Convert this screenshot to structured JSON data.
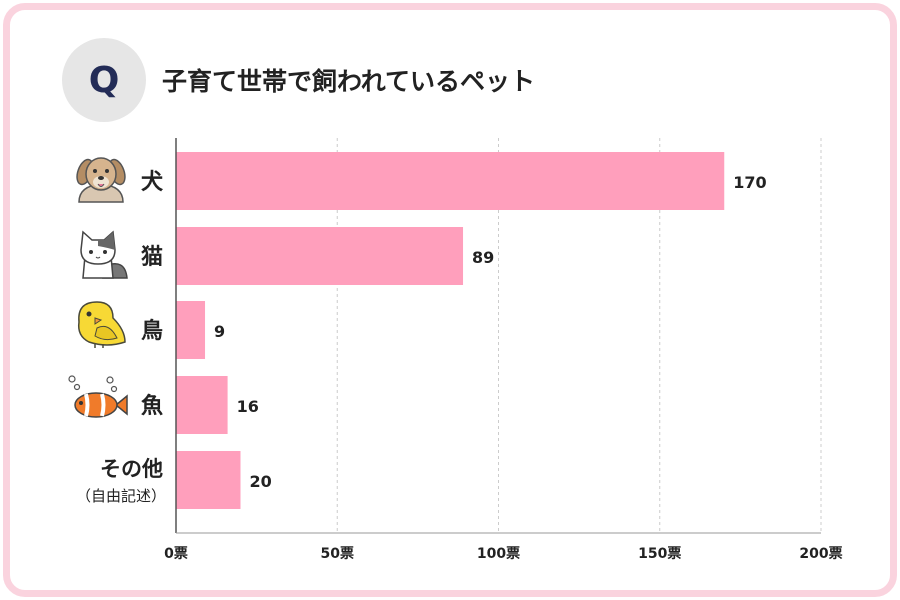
{
  "question_badge": "Q",
  "title": "子育て世帯で飼われているペット",
  "colors": {
    "bar": "#ff9fbc",
    "frame": "#fad3de",
    "badge": "#e6e6e6",
    "grid": "#cccccc"
  },
  "chart_data": {
    "type": "bar",
    "orientation": "horizontal",
    "categories": [
      "犬",
      "猫",
      "鳥",
      "魚",
      "その他"
    ],
    "category_sublabels": [
      "",
      "",
      "",
      "",
      "（自由記述）"
    ],
    "category_icons": [
      "dog-icon",
      "cat-icon",
      "bird-icon",
      "fish-icon",
      ""
    ],
    "values": [
      170,
      89,
      9,
      16,
      20
    ],
    "value_labels": [
      "170",
      "89",
      "9",
      "16",
      "20"
    ],
    "xlim": [
      0,
      200
    ],
    "ticks": [
      0,
      50,
      100,
      150,
      200
    ],
    "tick_labels": [
      "0票",
      "50票",
      "100票",
      "150票",
      "200票"
    ],
    "grid": true
  }
}
